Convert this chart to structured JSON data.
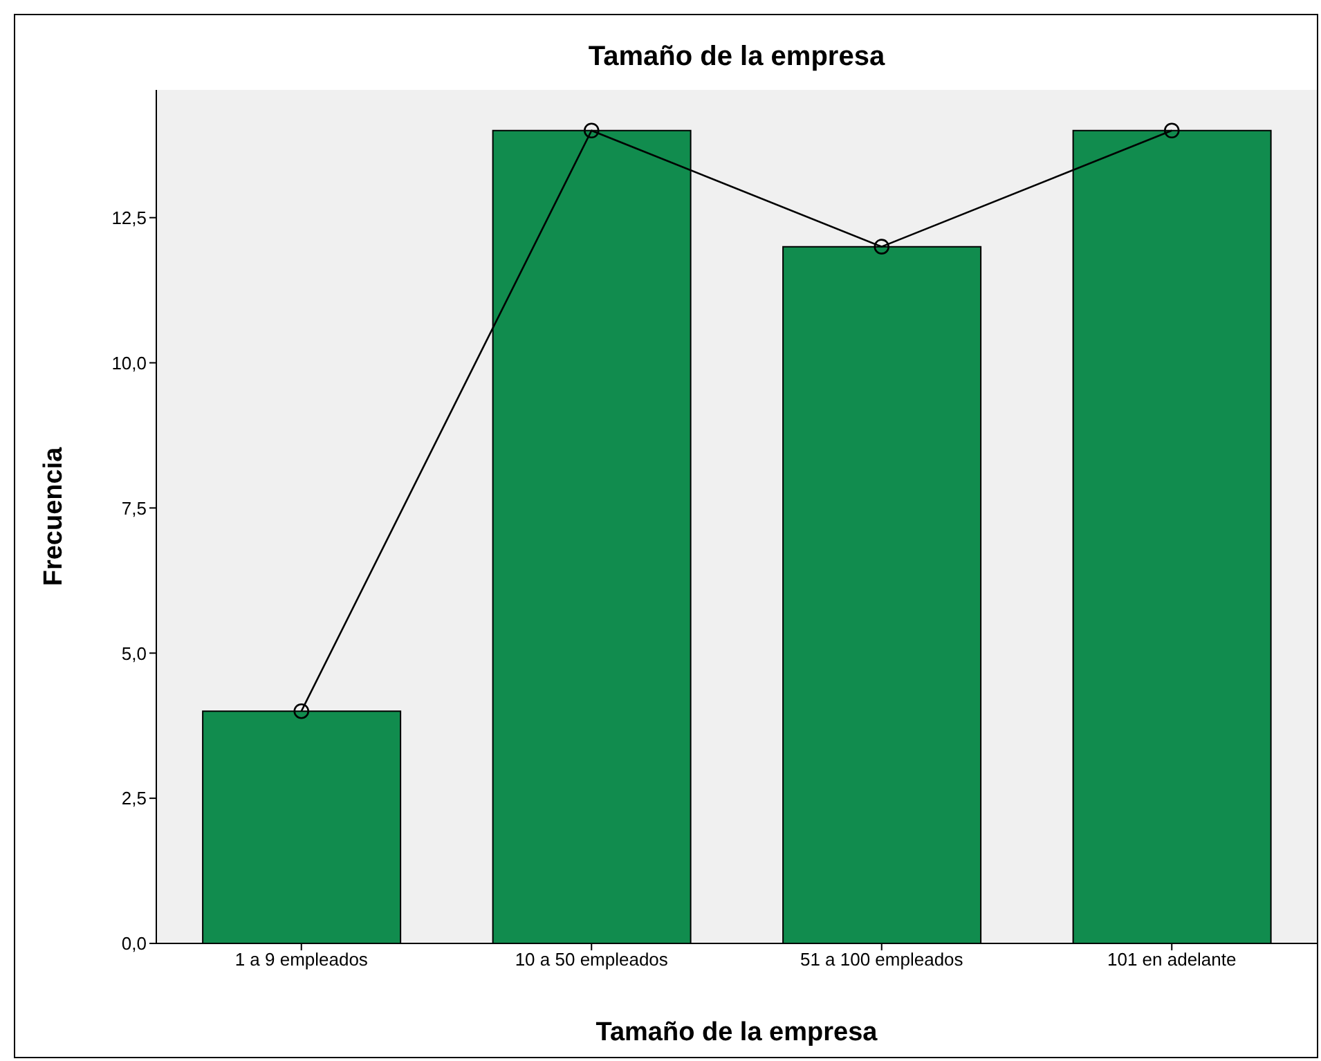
{
  "chart_data": {
    "type": "bar",
    "title": "Tamaño de la empresa",
    "xlabel": "Tamaño de la empresa",
    "ylabel": "Frecuencia",
    "categories": [
      "1 a 9 empleados",
      "10 a 50 empleados",
      "51 a 100 empleados",
      "101 en adelante"
    ],
    "series": [
      {
        "color": "#118c4e",
        "values": [
          4,
          14,
          12,
          14
        ]
      },
      {
        "type": "line",
        "color": "#000000",
        "marker": "circle",
        "line_style": "solid",
        "values": [
          4,
          14,
          12,
          14
        ]
      }
    ],
    "ylim": [
      0,
      14.7
    ],
    "yticks": [
      {
        "value": 0,
        "label": "0,0"
      },
      {
        "value": 2.5,
        "label": "2,5"
      },
      {
        "value": 5,
        "label": "5,0"
      },
      {
        "value": 7.5,
        "label": "7,5"
      },
      {
        "value": 10,
        "label": "10,0"
      },
      {
        "value": 12.5,
        "label": "12,5"
      }
    ],
    "grid": false,
    "legend": false
  }
}
